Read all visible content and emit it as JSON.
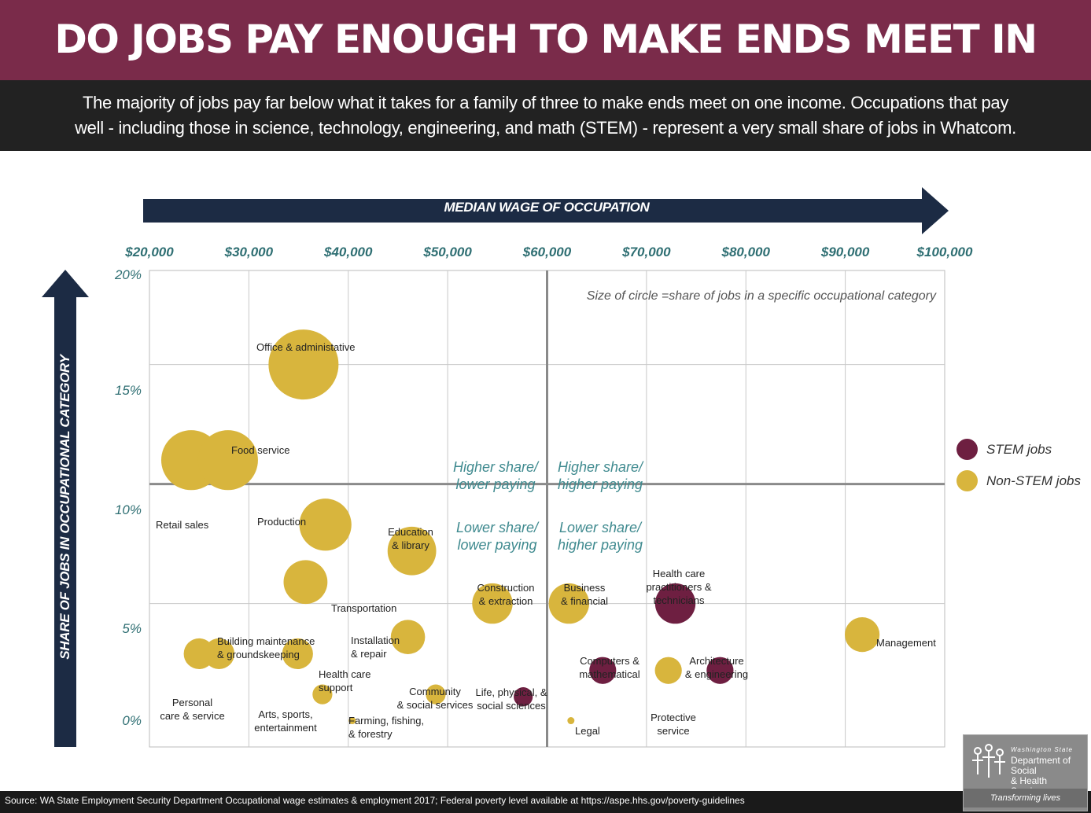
{
  "header": {
    "title": "DO JOBS PAY ENOUGH TO MAKE ENDS MEET IN WHATCOM?",
    "subtitle_line1": "The majority of jobs pay far below what it takes for a family of three to make ends meet on one income. Occupations that pay",
    "subtitle_line2": "well - including those in science, technology, engineering, and math (STEM) - represent a very small share of  jobs in Whatcom."
  },
  "chart_data": {
    "type": "scatter",
    "title": "DO JOBS PAY ENOUGH TO MAKE ENDS MEET IN WHATCOM?",
    "xlabel": "MEDIAN WAGE OF  OCCUPATION",
    "ylabel": "SHARE OF JOBS IN OCCUPATIONAL CATEGORY",
    "xlim": [
      20000,
      100000
    ],
    "ylim": [
      -1,
      20
    ],
    "x_ticks": [
      20000,
      30000,
      40000,
      50000,
      60000,
      70000,
      80000,
      90000,
      100000
    ],
    "x_tick_labels": [
      "$20,000",
      "$30,000",
      "$40,000",
      "$50,000",
      "$60,000",
      "$70,000",
      "$80,000",
      "$90,000",
      "$100,000"
    ],
    "y_ticks": [
      0,
      5,
      10,
      15,
      20
    ],
    "y_tick_labels": [
      "0%",
      "5%",
      "10%",
      "15%",
      "20%"
    ],
    "divider_x": 60000,
    "divider_y": 10,
    "size_note": "Size of circle =share of jobs in a specific occupational category",
    "quadrants": {
      "upper_left": [
        "Higher share/",
        "lower paying"
      ],
      "upper_right": [
        "Higher share/",
        "higher paying"
      ],
      "lower_left": [
        "Lower share/",
        "lower paying"
      ],
      "lower_right": [
        "Lower share/",
        "higher paying"
      ]
    },
    "legend": [
      {
        "name": "STEM jobs",
        "color": "#6e1f41"
      },
      {
        "name": "Non-STEM jobs",
        "color": "#d8b53d"
      }
    ],
    "points": [
      {
        "id": "office",
        "label": [
          "Office & administative"
        ],
        "wage": 35500,
        "share": 15.0,
        "stem": false
      },
      {
        "id": "retail",
        "label": [
          "Retail sales"
        ],
        "wage": 24200,
        "share": 11.0,
        "stem": false
      },
      {
        "id": "food",
        "label": [
          "Food service"
        ],
        "wage": 27900,
        "share": 11.0,
        "stem": false
      },
      {
        "id": "production",
        "label": [
          "Production"
        ],
        "wage": 37700,
        "share": 8.3,
        "stem": false
      },
      {
        "id": "education",
        "label": [
          "Education",
          "& library"
        ],
        "wage": 46400,
        "share": 7.2,
        "stem": false
      },
      {
        "id": "transportation",
        "label": [
          "Transportation"
        ],
        "wage": 35700,
        "share": 5.9,
        "stem": false
      },
      {
        "id": "construction",
        "label": [
          "Construction",
          "& extraction"
        ],
        "wage": 54500,
        "share": 5.0,
        "stem": false
      },
      {
        "id": "business",
        "label": [
          "Business",
          "& financial"
        ],
        "wage": 62200,
        "share": 5.0,
        "stem": false
      },
      {
        "id": "healthprac",
        "label": [
          "Health care",
          "practitioners &",
          "technicians"
        ],
        "wage": 72900,
        "share": 5.0,
        "stem": true
      },
      {
        "id": "management",
        "label": [
          "Management"
        ],
        "wage": 91700,
        "share": 3.7,
        "stem": false
      },
      {
        "id": "building",
        "label": [
          "Building maintenance",
          "& groundskeeping"
        ],
        "wage": 27000,
        "share": 2.9,
        "stem": false
      },
      {
        "id": "personal",
        "label": [
          "Personal",
          "care & service"
        ],
        "wage": 25000,
        "share": 2.9,
        "stem": false
      },
      {
        "id": "installation",
        "label": [
          "Installation",
          "& repair"
        ],
        "wage": 46000,
        "share": 3.6,
        "stem": false
      },
      {
        "id": "healthsupport",
        "label": [
          "Health care",
          "support"
        ],
        "wage": 34900,
        "share": 2.9,
        "stem": false
      },
      {
        "id": "computers",
        "label": [
          "Computers &",
          "mathematical"
        ],
        "wage": 65600,
        "share": 2.2,
        "stem": true
      },
      {
        "id": "architecture",
        "label": [
          "Architecture",
          "& engineering"
        ],
        "wage": 77400,
        "share": 2.2,
        "stem": true
      },
      {
        "id": "protective",
        "label": [
          "Protective",
          "service"
        ],
        "wage": 72200,
        "share": 2.2,
        "stem": false
      },
      {
        "id": "arts",
        "label": [
          "Arts, sports,",
          "entertainment"
        ],
        "wage": 37400,
        "share": 1.2,
        "stem": false
      },
      {
        "id": "community",
        "label": [
          "Community",
          "& social services"
        ],
        "wage": 48800,
        "share": 1.2,
        "stem": false
      },
      {
        "id": "lifescience",
        "label": [
          "Life, physical, &",
          "social sciences"
        ],
        "wage": 57600,
        "share": 1.1,
        "stem": true
      },
      {
        "id": "farming",
        "label": [
          "Farming, fishing,",
          "& forestry"
        ],
        "wage": 40400,
        "share": 0.1,
        "stem": false
      },
      {
        "id": "legal",
        "label": [
          "Legal"
        ],
        "wage": 62400,
        "share": 0.1,
        "stem": false
      }
    ]
  },
  "footer": {
    "source": "Source: WA State Employment Security Department Occupational wage estimates & employment 2017; Federal poverty level available at https://aspe.hhs.gov/poverty-guidelines"
  },
  "logo": {
    "line_small": "Washington State",
    "line1": "Department of Social",
    "line2": "& Health Services",
    "tagline": "Transforming lives"
  }
}
